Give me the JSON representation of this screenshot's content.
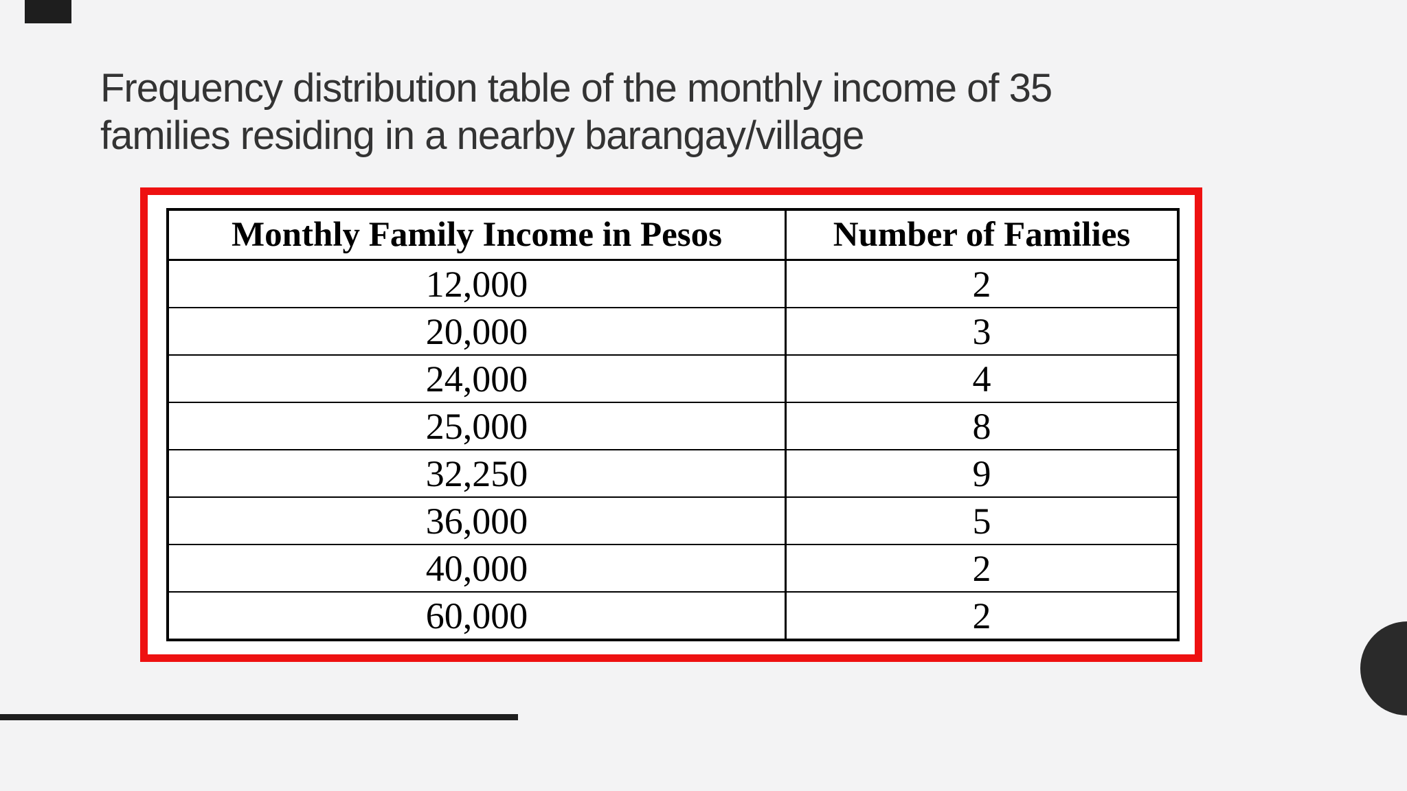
{
  "page": {
    "background_color": "#f3f3f4",
    "accent_black": "#1e1e1e",
    "frame_color": "#ee1111"
  },
  "title": {
    "line1": "Frequency distribution table of the monthly income of 35",
    "line2": "families residing in a nearby barangay/village",
    "color": "#333333"
  },
  "table": {
    "headers": {
      "income": "Monthly Family Income in Pesos",
      "families": "Number of Families"
    },
    "rows": [
      {
        "income": "12,000",
        "families": "2"
      },
      {
        "income": "20,000",
        "families": "3"
      },
      {
        "income": "24,000",
        "families": "4"
      },
      {
        "income": "25,000",
        "families": "8"
      },
      {
        "income": "32,250",
        "families": "9"
      },
      {
        "income": "36,000",
        "families": "5"
      },
      {
        "income": "40,000",
        "families": "2"
      },
      {
        "income": "60,000",
        "families": "2"
      }
    ]
  }
}
